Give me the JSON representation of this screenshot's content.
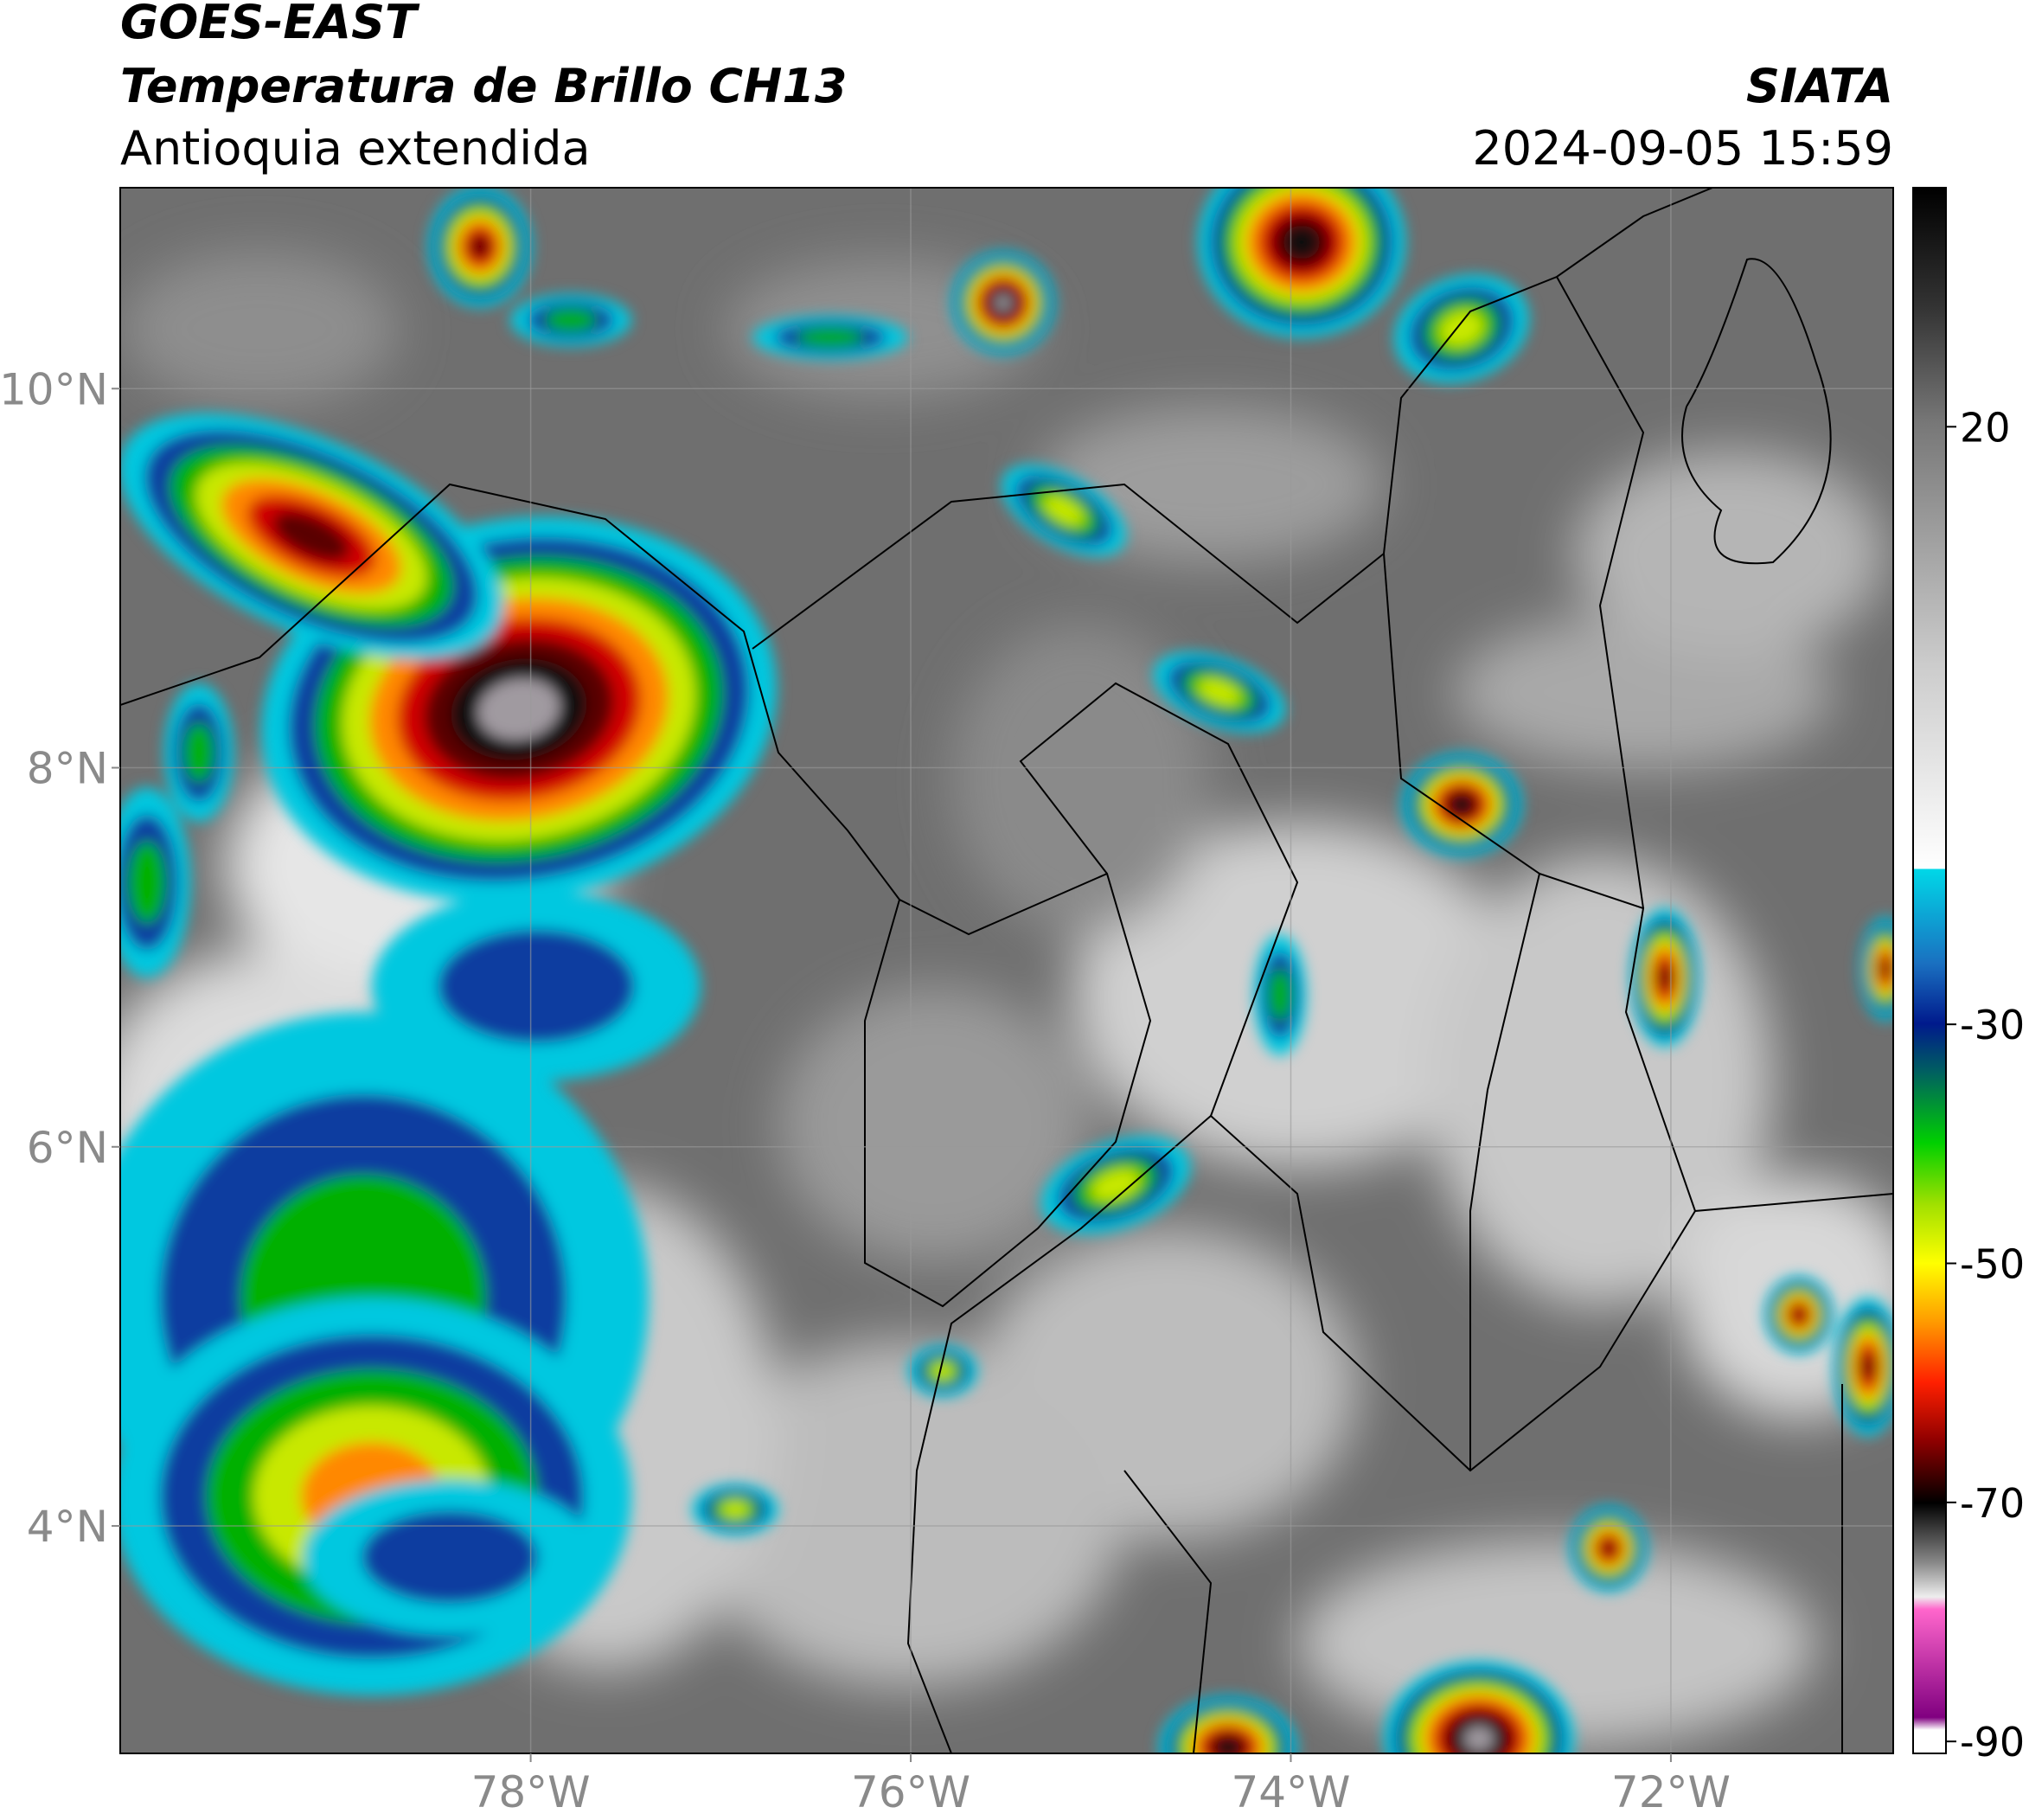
{
  "header": {
    "title": "GOES-EAST",
    "subtitle": "Temperatura de Brillo CH13",
    "region": "Antioquia extendida",
    "source": "SIATA",
    "datetime": "2024-09-05 15:59"
  },
  "map": {
    "xlim": [
      -80.16,
      -70.83
    ],
    "ylim": [
      2.8,
      11.06
    ],
    "xticks": [
      {
        "value": -78,
        "label": "78°W"
      },
      {
        "value": -76,
        "label": "76°W"
      },
      {
        "value": -74,
        "label": "74°W"
      },
      {
        "value": -72,
        "label": "72°W"
      }
    ],
    "yticks": [
      {
        "value": 4,
        "label": "4°N"
      },
      {
        "value": 6,
        "label": "6°N"
      },
      {
        "value": 8,
        "label": "8°N"
      },
      {
        "value": 10,
        "label": "10°N"
      }
    ]
  },
  "colorbar": {
    "lim": [
      -91,
      40
    ],
    "ticks": [
      20,
      -30,
      -50,
      -70,
      -90
    ]
  }
}
